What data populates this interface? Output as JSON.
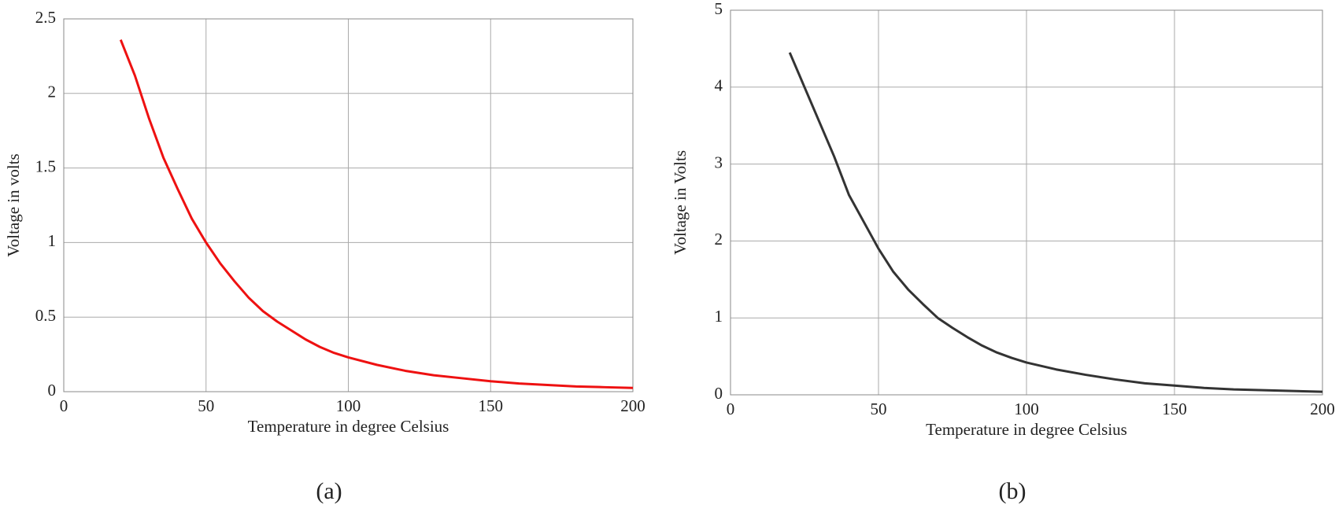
{
  "chart_data": [
    {
      "type": "line",
      "caption": "(a)",
      "xlabel": "Temperature in degree Celsius",
      "ylabel": "Voltage in volts",
      "x": [
        20,
        25,
        30,
        35,
        40,
        45,
        50,
        55,
        60,
        65,
        70,
        75,
        80,
        85,
        90,
        95,
        100,
        110,
        120,
        130,
        140,
        150,
        160,
        170,
        180,
        190,
        200
      ],
      "values": [
        2.36,
        2.12,
        1.83,
        1.57,
        1.36,
        1.16,
        1.0,
        0.86,
        0.74,
        0.63,
        0.54,
        0.47,
        0.41,
        0.35,
        0.3,
        0.26,
        0.23,
        0.18,
        0.14,
        0.11,
        0.09,
        0.07,
        0.055,
        0.045,
        0.035,
        0.03,
        0.025
      ],
      "color": "#ee1111",
      "xlim": [
        0,
        200
      ],
      "ylim": [
        0,
        2.5
      ],
      "xticks": [
        0,
        50,
        100,
        150,
        200
      ],
      "yticks": [
        0,
        0.5,
        1,
        1.5,
        2,
        2.5
      ],
      "grid": true
    },
    {
      "type": "line",
      "caption": "(b)",
      "xlabel": "Temperature in degree Celsius",
      "ylabel": "Voltage in Volts",
      "x": [
        20,
        25,
        30,
        35,
        40,
        45,
        50,
        55,
        60,
        65,
        70,
        75,
        80,
        85,
        90,
        95,
        100,
        110,
        120,
        130,
        140,
        150,
        160,
        170,
        180,
        190,
        200
      ],
      "values": [
        4.45,
        4.0,
        3.55,
        3.1,
        2.6,
        2.25,
        1.9,
        1.6,
        1.37,
        1.18,
        1.0,
        0.87,
        0.75,
        0.64,
        0.55,
        0.48,
        0.42,
        0.33,
        0.26,
        0.2,
        0.15,
        0.12,
        0.09,
        0.07,
        0.06,
        0.05,
        0.04
      ],
      "color": "#333333",
      "xlim": [
        0,
        200
      ],
      "ylim": [
        0,
        5
      ],
      "xticks": [
        0,
        50,
        100,
        150,
        200
      ],
      "yticks": [
        0,
        1,
        2,
        3,
        4,
        5
      ],
      "grid": true
    }
  ]
}
